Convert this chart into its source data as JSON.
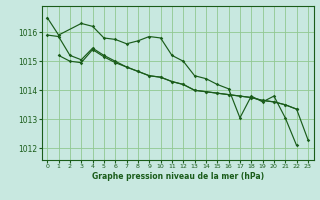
{
  "background_color": "#c8e8e0",
  "grid_color": "#90c890",
  "line_color": "#1a5c1a",
  "border_color": "#1a5c1a",
  "xlabel": "Graphe pression niveau de la mer (hPa)",
  "ylim": [
    1011.6,
    1016.9
  ],
  "xlim": [
    -0.5,
    23.5
  ],
  "yticks": [
    1012,
    1013,
    1014,
    1015,
    1016
  ],
  "xticks": [
    0,
    1,
    2,
    3,
    4,
    5,
    6,
    7,
    8,
    9,
    10,
    11,
    12,
    13,
    14,
    15,
    16,
    17,
    18,
    19,
    20,
    21,
    22,
    23
  ],
  "series": [
    {
      "x": [
        0,
        1,
        3,
        4,
        5,
        6,
        7,
        8,
        9,
        10,
        11,
        12,
        13,
        14,
        15,
        16,
        17,
        18,
        19,
        20,
        21,
        22
      ],
      "y": [
        1016.5,
        1015.9,
        1016.3,
        1016.2,
        1015.8,
        1015.75,
        1015.6,
        1015.7,
        1015.85,
        1015.8,
        1015.2,
        1015.0,
        1014.5,
        1014.4,
        1014.2,
        1014.05,
        1013.05,
        1013.8,
        1013.6,
        1013.8,
        1013.05,
        1012.1
      ]
    },
    {
      "x": [
        0,
        1,
        2,
        3,
        4,
        5,
        6,
        7,
        8,
        9,
        10,
        11,
        12,
        13,
        14,
        15,
        16,
        17,
        18,
        19,
        20,
        21,
        22
      ],
      "y": [
        1015.9,
        1015.85,
        1015.2,
        1015.05,
        1015.45,
        1015.2,
        1015.0,
        1014.8,
        1014.65,
        1014.5,
        1014.45,
        1014.3,
        1014.2,
        1014.0,
        1013.95,
        1013.9,
        1013.85,
        1013.8,
        1013.75,
        1013.65,
        1013.6,
        1013.5,
        1013.35
      ]
    },
    {
      "x": [
        1,
        2,
        3,
        4,
        5,
        6,
        7,
        8,
        9,
        10,
        11,
        12,
        13,
        14,
        15,
        16,
        17,
        18,
        19,
        20,
        21,
        22,
        23
      ],
      "y": [
        1015.2,
        1015.0,
        1014.95,
        1015.4,
        1015.15,
        1014.95,
        1014.8,
        1014.65,
        1014.5,
        1014.45,
        1014.3,
        1014.2,
        1014.0,
        1013.95,
        1013.9,
        1013.85,
        1013.8,
        1013.75,
        1013.65,
        1013.6,
        1013.5,
        1013.35,
        1012.3
      ]
    }
  ]
}
